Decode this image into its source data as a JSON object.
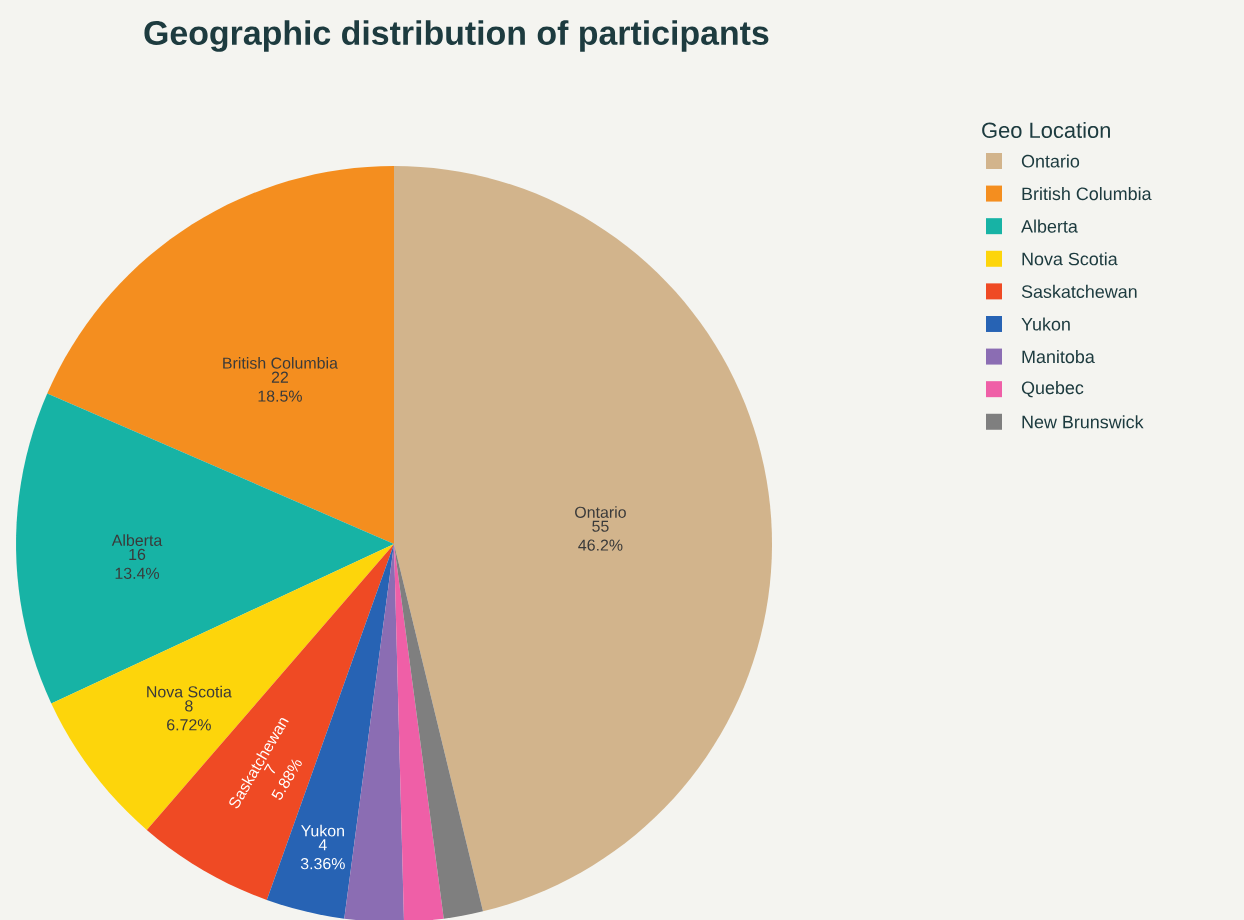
{
  "chart_data": {
    "type": "pie",
    "title": "Geographic distribution of participants",
    "legend_title": "Geo Location",
    "legend": "top right",
    "categories": [
      "Ontario",
      "British Columbia",
      "Alberta",
      "Nova Scotia",
      "Saskatchewan",
      "Yukon",
      "Manitoba",
      "Quebec",
      "New Brunswick"
    ],
    "values": [
      55,
      22,
      16,
      8,
      7,
      4,
      3,
      2,
      2
    ],
    "value_labels": [
      "55 46.2%",
      "22 18.5%",
      "16 13.4%",
      "8 6.72%",
      "7 5.88%",
      "4 3.36%",
      null,
      null,
      null
    ],
    "colors": [
      "#d2b48c",
      "#f48e1f",
      "#17b3a5",
      "#fdd50b",
      "#ef4a24",
      "#2763b4",
      "#8b6db3",
      "#ef5fa7",
      "#7f7f7f"
    ]
  }
}
